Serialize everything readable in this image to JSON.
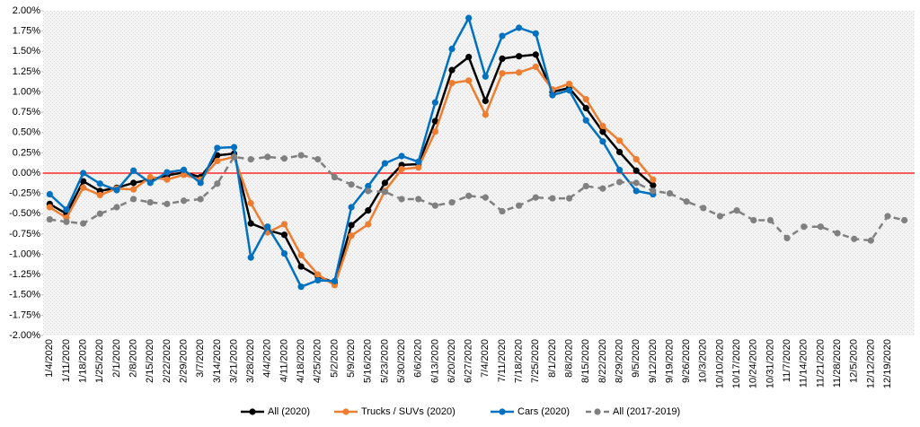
{
  "chart_data": {
    "type": "line",
    "categories": [
      "1/4/2020",
      "1/11/2020",
      "1/18/2020",
      "1/25/2020",
      "2/1/2020",
      "2/8/2020",
      "2/15/2020",
      "2/22/2020",
      "2/29/2020",
      "3/7/2020",
      "3/14/2020",
      "3/21/2020",
      "3/28/2020",
      "4/4/2020",
      "4/11/2020",
      "4/18/2020",
      "4/25/2020",
      "5/2/2020",
      "5/9/2020",
      "5/16/2020",
      "5/23/2020",
      "5/30/2020",
      "6/6/2020",
      "6/13/2020",
      "6/20/2020",
      "6/27/2020",
      "7/4/2020",
      "7/11/2020",
      "7/18/2020",
      "7/25/2020",
      "8/1/2020",
      "8/8/2020",
      "8/15/2020",
      "8/22/2020",
      "8/29/2020",
      "9/5/2020",
      "9/12/2020",
      "9/19/2020",
      "9/26/2020",
      "10/3/2020",
      "10/10/2020",
      "10/17/2020",
      "10/24/2020",
      "10/31/2020",
      "11/7/2020",
      "11/14/2020",
      "11/21/2020",
      "11/28/2020",
      "12/5/2020",
      "12/12/2020",
      "12/19/2020",
      null
    ],
    "series": [
      {
        "name": "All (2020)",
        "color": "#000000",
        "dashed": false,
        "values": [
          -0.38,
          -0.5,
          -0.1,
          -0.22,
          -0.18,
          -0.12,
          -0.08,
          -0.03,
          0.01,
          -0.05,
          0.22,
          0.24,
          -0.62,
          -0.7,
          -0.76,
          -1.15,
          -1.27,
          -1.35,
          -0.64,
          -0.46,
          -0.12,
          0.1,
          0.11,
          0.64,
          1.27,
          1.43,
          0.89,
          1.41,
          1.44,
          1.46,
          1.0,
          1.05,
          0.8,
          0.51,
          0.26,
          0.03,
          -0.15,
          null,
          null,
          null,
          null,
          null,
          null,
          null,
          null,
          null,
          null,
          null,
          null,
          null,
          null,
          null
        ]
      },
      {
        "name": "Trucks / SUVs (2020)",
        "color": "#ed7d31",
        "dashed": false,
        "values": [
          -0.42,
          -0.55,
          -0.18,
          -0.27,
          -0.19,
          -0.2,
          -0.05,
          -0.08,
          -0.02,
          -0.08,
          0.15,
          0.2,
          -0.37,
          -0.73,
          -0.63,
          -1.01,
          -1.25,
          -1.38,
          -0.77,
          -0.63,
          -0.22,
          0.05,
          0.07,
          0.51,
          1.11,
          1.14,
          0.72,
          1.23,
          1.24,
          1.31,
          1.03,
          1.1,
          0.91,
          0.58,
          0.4,
          0.17,
          -0.08,
          null,
          null,
          null,
          null,
          null,
          null,
          null,
          null,
          null,
          null,
          null,
          null,
          null,
          null,
          null
        ]
      },
      {
        "name": "Cars (2020)",
        "color": "#0070c0",
        "dashed": false,
        "values": [
          -0.26,
          -0.45,
          0.0,
          -0.13,
          -0.21,
          0.03,
          -0.12,
          0.01,
          0.04,
          -0.12,
          0.31,
          0.32,
          -1.04,
          -0.66,
          -0.99,
          -1.4,
          -1.32,
          -1.33,
          -0.42,
          -0.16,
          0.12,
          0.21,
          0.14,
          0.87,
          1.53,
          1.91,
          1.19,
          1.69,
          1.79,
          1.72,
          0.96,
          1.02,
          0.65,
          0.39,
          0.04,
          -0.22,
          -0.26,
          null,
          null,
          null,
          null,
          null,
          null,
          null,
          null,
          null,
          null,
          null,
          null,
          null,
          null,
          null
        ]
      },
      {
        "name": "All (2017-2019)",
        "color": "#808080",
        "dashed": true,
        "values": [
          -0.57,
          -0.6,
          -0.62,
          -0.5,
          -0.42,
          -0.32,
          -0.36,
          -0.38,
          -0.34,
          -0.32,
          -0.13,
          0.2,
          0.17,
          0.2,
          0.18,
          0.22,
          0.17,
          -0.05,
          -0.14,
          -0.22,
          -0.23,
          -0.32,
          -0.32,
          -0.4,
          -0.36,
          -0.28,
          -0.3,
          -0.47,
          -0.4,
          -0.3,
          -0.31,
          -0.31,
          -0.16,
          -0.19,
          -0.11,
          -0.12,
          -0.22,
          -0.25,
          -0.35,
          -0.43,
          -0.53,
          -0.46,
          -0.58,
          -0.58,
          -0.8,
          -0.66,
          -0.66,
          -0.74,
          -0.81,
          -0.83,
          -0.53,
          -0.58
        ]
      }
    ],
    "ylim": [
      -2,
      2
    ],
    "yticks": [
      {
        "value": 2,
        "label": "2.00%"
      },
      {
        "value": 1.75,
        "label": "1.75%"
      },
      {
        "value": 1.5,
        "label": "1.50%"
      },
      {
        "value": 1.25,
        "label": "1.25%"
      },
      {
        "value": 1,
        "label": "1.00%"
      },
      {
        "value": 0.75,
        "label": "0.75%"
      },
      {
        "value": 0.5,
        "label": "0.50%"
      },
      {
        "value": 0.25,
        "label": "0.25%"
      },
      {
        "value": 0,
        "label": "0.00%"
      },
      {
        "value": -0.25,
        "label": "-0.25%"
      },
      {
        "value": -0.5,
        "label": "-0.50%"
      },
      {
        "value": -0.75,
        "label": "-0.75%"
      },
      {
        "value": -1,
        "label": "-1.00%"
      },
      {
        "value": -1.25,
        "label": "-1.25%"
      },
      {
        "value": -1.5,
        "label": "-1.50%"
      },
      {
        "value": -1.75,
        "label": "-1.75%"
      },
      {
        "value": -2,
        "label": "-2.00%"
      }
    ],
    "reference_line": {
      "value": 0,
      "color": "#ff0000"
    },
    "legend": "bottom"
  }
}
